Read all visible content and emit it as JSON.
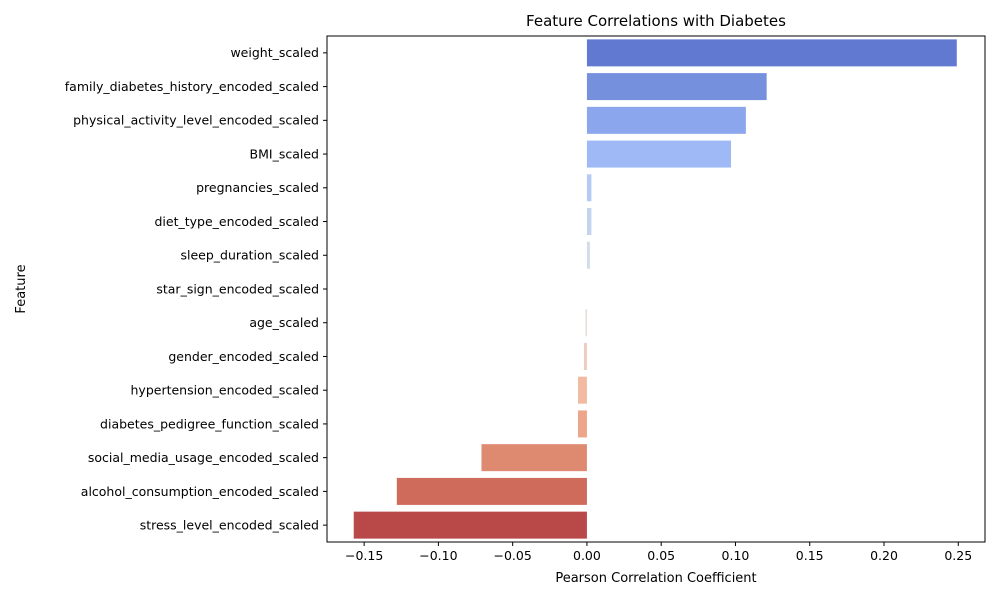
{
  "chart_data": {
    "type": "bar",
    "orientation": "horizontal",
    "title": "Feature Correlations with Diabetes",
    "xlabel": "Pearson Correlation Coefficient",
    "ylabel": "Feature",
    "xlim": [
      -0.175,
      0.268
    ],
    "xticks": [
      -0.15,
      -0.1,
      -0.05,
      0.0,
      0.05,
      0.1,
      0.15,
      0.2,
      0.25
    ],
    "xtick_labels": [
      "−0.15",
      "−0.10",
      "−0.05",
      "0.00",
      "0.05",
      "0.10",
      "0.15",
      "0.20",
      "0.25"
    ],
    "grid": false,
    "legend": "none",
    "categories": [
      "weight_scaled",
      "family_diabetes_history_encoded_scaled",
      "physical_activity_level_encoded_scaled",
      "BMI_scaled",
      "pregnancies_scaled",
      "diet_type_encoded_scaled",
      "sleep_duration_scaled",
      "star_sign_encoded_scaled",
      "age_scaled",
      "gender_encoded_scaled",
      "hypertension_encoded_scaled",
      "diabetes_pedigree_function_scaled",
      "social_media_usage_encoded_scaled",
      "alcohol_consumption_encoded_scaled",
      "stress_level_encoded_scaled"
    ],
    "values": [
      0.249,
      0.121,
      0.107,
      0.097,
      0.003,
      0.003,
      0.002,
      0.0,
      -0.001,
      -0.002,
      -0.006,
      -0.006,
      -0.071,
      -0.128,
      -0.157
    ],
    "colors": [
      "#6279d1",
      "#7591de",
      "#8ba6ec",
      "#9eb9f5",
      "#b6cbf4",
      "#c3d4f0",
      "#d2dcea",
      "#dddcdc",
      "#e8dcd3",
      "#efcdbc",
      "#f2baa0",
      "#eda58a",
      "#de8a70",
      "#cf6b5a",
      "#b94948"
    ]
  }
}
